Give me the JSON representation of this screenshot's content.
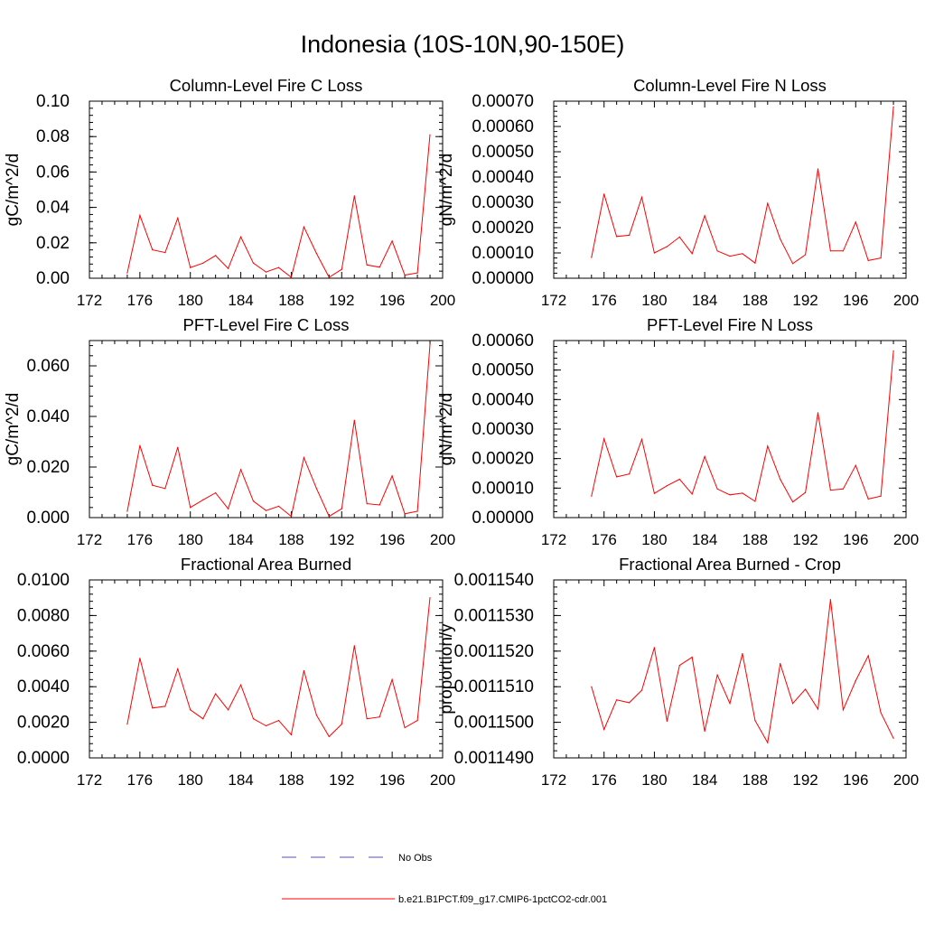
{
  "title": "Indonesia (10S-10N,90-150E)",
  "colors": {
    "model_line": "#ff0000",
    "obs_line": "#5050b4",
    "axis": "#000000"
  },
  "legend": [
    {
      "label": "No Obs",
      "style": "dashed",
      "color": "#5050b4"
    },
    {
      "label": "b.e21.B1PCT.f09_g17.CMIP6-1pctCO2-cdr.001",
      "style": "solid",
      "color": "#ff0000"
    }
  ],
  "chart_data": [
    {
      "type": "line",
      "title": "Column-Level Fire C Loss",
      "ylabel": "gC/m^2/d",
      "xlim": [
        172,
        200
      ],
      "xticks": [
        "172",
        "176",
        "180",
        "184",
        "188",
        "192",
        "196",
        "200"
      ],
      "ylim": [
        0,
        0.1
      ],
      "yticks": [
        "0.00",
        "0.02",
        "0.04",
        "0.06",
        "0.08",
        "0.10"
      ],
      "x": [
        175,
        176,
        177,
        178,
        179,
        180,
        181,
        182,
        183,
        184,
        185,
        186,
        187,
        188,
        189,
        190,
        191,
        192,
        193,
        194,
        195,
        196,
        197,
        198,
        199
      ],
      "series": [
        {
          "values": [
            0.003,
            0.0355,
            0.016,
            0.0145,
            0.034,
            0.006,
            0.0085,
            0.0128,
            0.0055,
            0.0233,
            0.0085,
            0.0035,
            0.006,
            0.0005,
            0.029,
            0.014,
            0.0005,
            0.005,
            0.0465,
            0.0075,
            0.0062,
            0.021,
            0.0018,
            0.003,
            0.081
          ]
        }
      ]
    },
    {
      "type": "line",
      "title": "Column-Level Fire N Loss",
      "ylabel": "gN/m^2/d",
      "xlim": [
        172,
        200
      ],
      "xticks": [
        "172",
        "176",
        "180",
        "184",
        "188",
        "192",
        "196",
        "200"
      ],
      "ylim": [
        0,
        0.0007
      ],
      "yticks": [
        "0.00000",
        "0.00010",
        "0.00020",
        "0.00030",
        "0.00040",
        "0.00050",
        "0.00060",
        "0.00070"
      ],
      "x": [
        175,
        176,
        177,
        178,
        179,
        180,
        181,
        182,
        183,
        184,
        185,
        186,
        187,
        188,
        189,
        190,
        191,
        192,
        193,
        194,
        195,
        196,
        197,
        198,
        199
      ],
      "series": [
        {
          "values": [
            8.2e-05,
            0.000333,
            0.000165,
            0.00017,
            0.00032,
            0.0001,
            0.000125,
            0.000163,
            9.7e-05,
            0.000247,
            0.000108,
            8.7e-05,
            9.7e-05,
            6e-05,
            0.000296,
            0.000155,
            5.8e-05,
            9.3e-05,
            0.000432,
            0.000108,
            0.000108,
            0.000222,
            7e-05,
            8e-05,
            0.000678
          ]
        }
      ]
    },
    {
      "type": "line",
      "title": "PFT-Level Fire C Loss",
      "ylabel": "gC/m^2/d",
      "xlim": [
        172,
        200
      ],
      "xticks": [
        "172",
        "176",
        "180",
        "184",
        "188",
        "192",
        "196",
        "200"
      ],
      "ylim": [
        0,
        0.07
      ],
      "yticks": [
        "0.000",
        "0.020",
        "0.040",
        "0.060"
      ],
      "ytick_values": [
        0,
        0.02,
        0.04,
        0.06
      ],
      "x": [
        175,
        176,
        177,
        178,
        179,
        180,
        181,
        182,
        183,
        184,
        185,
        186,
        187,
        188,
        189,
        190,
        191,
        192,
        193,
        194,
        195,
        196,
        197,
        198,
        199
      ],
      "series": [
        {
          "values": [
            0.0025,
            0.0285,
            0.0128,
            0.0115,
            0.0278,
            0.004,
            0.007,
            0.0098,
            0.0035,
            0.019,
            0.0065,
            0.0028,
            0.0045,
            0.0005,
            0.0237,
            0.0115,
            0.0005,
            0.0035,
            0.0385,
            0.0055,
            0.005,
            0.0165,
            0.0015,
            0.0025,
            0.0685
          ]
        }
      ]
    },
    {
      "type": "line",
      "title": "PFT-Level Fire N Loss",
      "ylabel": "gN/m^2/d",
      "xlim": [
        172,
        200
      ],
      "xticks": [
        "172",
        "176",
        "180",
        "184",
        "188",
        "192",
        "196",
        "200"
      ],
      "ylim": [
        0,
        0.0006
      ],
      "yticks": [
        "0.00000",
        "0.00010",
        "0.00020",
        "0.00030",
        "0.00040",
        "0.00050",
        "0.00060"
      ],
      "x": [
        175,
        176,
        177,
        178,
        179,
        180,
        181,
        182,
        183,
        184,
        185,
        186,
        187,
        188,
        189,
        190,
        191,
        192,
        193,
        194,
        195,
        196,
        197,
        198,
        199
      ],
      "series": [
        {
          "values": [
            7.3e-05,
            0.000267,
            0.000138,
            0.000148,
            0.000265,
            8.2e-05,
            0.000108,
            0.00013,
            8e-05,
            0.000207,
            9.7e-05,
            7.7e-05,
            8.3e-05,
            5.5e-05,
            0.000242,
            0.00013,
            5.3e-05,
            8.5e-05,
            0.000355,
            9.3e-05,
            9.7e-05,
            0.000177,
            6.3e-05,
            7.3e-05,
            0.000565
          ]
        }
      ]
    },
    {
      "type": "line",
      "title": "Fractional Area Burned",
      "ylabel": "",
      "xlim": [
        172,
        200
      ],
      "xticks": [
        "172",
        "176",
        "180",
        "184",
        "188",
        "192",
        "196",
        "200"
      ],
      "ylim": [
        0,
        0.01
      ],
      "yticks": [
        "0.0000",
        "0.0020",
        "0.0040",
        "0.0060",
        "0.0080",
        "0.0100"
      ],
      "x": [
        175,
        176,
        177,
        178,
        179,
        180,
        181,
        182,
        183,
        184,
        185,
        186,
        187,
        188,
        189,
        190,
        191,
        192,
        193,
        194,
        195,
        196,
        197,
        198,
        199
      ],
      "series": [
        {
          "values": [
            0.0019,
            0.0056,
            0.0028,
            0.0029,
            0.005,
            0.0027,
            0.0022,
            0.0036,
            0.0027,
            0.0041,
            0.0022,
            0.0018,
            0.0021,
            0.0013,
            0.0049,
            0.0024,
            0.0012,
            0.0019,
            0.0063,
            0.0022,
            0.0023,
            0.0044,
            0.0017,
            0.0021,
            0.009
          ]
        }
      ]
    },
    {
      "type": "line",
      "title": "Fractional Area Burned - Crop",
      "ylabel": "proportion/y",
      "xlim": [
        172,
        200
      ],
      "xticks": [
        "172",
        "176",
        "180",
        "184",
        "188",
        "192",
        "196",
        "200"
      ],
      "ylim": [
        0.001149,
        0.001154
      ],
      "yticks": [
        "0.0011490",
        "0.0011500",
        "0.0011510",
        "0.0011520",
        "0.0011530",
        "0.0011540"
      ],
      "x": [
        175,
        176,
        177,
        178,
        179,
        180,
        181,
        182,
        183,
        184,
        185,
        186,
        187,
        188,
        189,
        190,
        191,
        192,
        193,
        194,
        195,
        196,
        197,
        198,
        199
      ],
      "series": [
        {
          "values": [
            0.001151,
            0.0011498,
            0.00115063,
            0.00115055,
            0.0011509,
            0.0011521,
            0.00115003,
            0.0011516,
            0.00115183,
            0.00114975,
            0.00115133,
            0.00115053,
            0.00115193,
            0.00115005,
            0.00114943,
            0.00115165,
            0.00115053,
            0.00115093,
            0.00115037,
            0.00115345,
            0.00115035,
            0.00115117,
            0.00115187,
            0.00115027,
            0.00114955
          ]
        }
      ]
    }
  ]
}
